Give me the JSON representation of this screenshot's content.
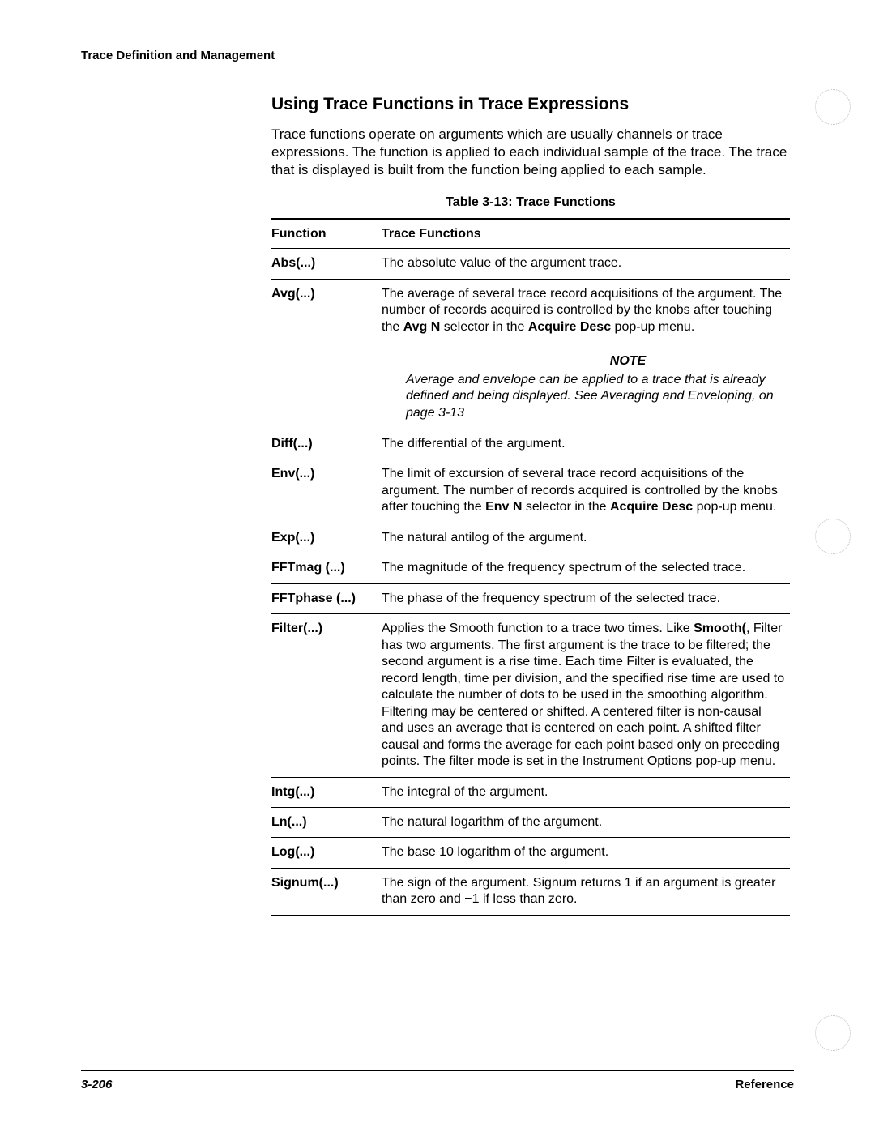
{
  "runningHead": "Trace Definition and Management",
  "sectionTitle": "Using Trace Functions in Trace Expressions",
  "intro": "Trace functions operate on arguments which are usually channels or trace expressions. The function is applied to each individual sample of the trace. The trace that is displayed is built from the function being applied to each sample.",
  "tableCaption": "Table 3-13: Trace Functions",
  "header": {
    "c1": "Function",
    "c2": "Trace Functions"
  },
  "rows": {
    "abs": {
      "fn": "Abs(...)",
      "desc": "The absolute value of the argument trace."
    },
    "avg": {
      "fn": "Avg(...)"
    },
    "diff": {
      "fn": "Diff(...)",
      "desc": "The differential of the argument."
    },
    "env": {
      "fn": "Env(...)"
    },
    "exp": {
      "fn": "Exp(...)",
      "desc": "The natural antilog of the argument."
    },
    "fftm": {
      "fn": "FFTmag (...)",
      "desc": "The magnitude of the frequency spectrum of the selected trace."
    },
    "fftp": {
      "fn": "FFTphase (...)",
      "desc": "The phase of the frequency spectrum of the selected trace."
    },
    "filter": {
      "fn": "Filter(...)"
    },
    "intg": {
      "fn": "Intg(...)",
      "desc": "The integral of the argument."
    },
    "ln": {
      "fn": "Ln(...)",
      "desc": "The natural logarithm of the argument."
    },
    "log": {
      "fn": "Log(...)",
      "desc": "The base 10 logarithm of the argument."
    },
    "signum": {
      "fn": "Signum(...)",
      "desc": "The sign of the argument. Signum returns 1 if an argument is greater than zero and −1 if less than zero."
    }
  },
  "avgDesc": {
    "pre": "The average of several trace record acquisitions of the argument. The number of records acquired is controlled by the knobs after touching the ",
    "b1": "Avg N",
    "mid": " selector in the ",
    "b2": "Acquire Desc",
    "post": " pop-up menu."
  },
  "noteLabel": "NOTE",
  "noteText": "Average and envelope can be applied to a trace that is already defined and being displayed. See Averaging and Enveloping, on page 3-13",
  "envDesc": {
    "pre": "The limit of excursion of several trace record acquisitions of the argument. The number of records acquired is controlled by the knobs after touching the ",
    "b1": "Env N",
    "mid": " selector in the ",
    "b2": "Acquire Desc",
    "post": " pop-up menu."
  },
  "filterDesc": {
    "pre": "Applies the Smooth function to a trace two times. Like ",
    "b1": "Smooth(",
    "post": ", Filter has two arguments. The first argument is the trace to be filtered; the second argument is a rise time. Each time Filter is evaluated, the record length, time per division, and the specified rise time are used to calculate the number of dots to be used in the smoothing algorithm. Filtering may be centered or shifted. A centered filter is non-causal and uses an average that is centered on each point. A shifted filter causal and forms the average for each point based only on preceding points. The filter mode is set in the Instrument Options pop-up menu."
  },
  "footer": {
    "page": "3-206",
    "ref": "Reference"
  }
}
